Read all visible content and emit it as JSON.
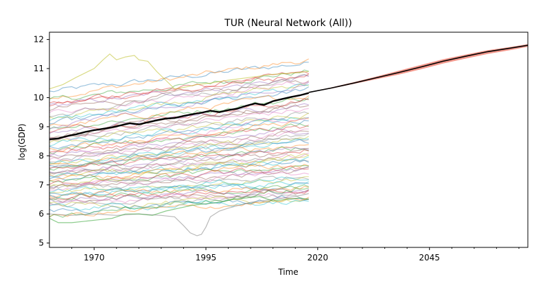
{
  "chart_data": {
    "type": "line",
    "title": "TUR (Neural Network (All))",
    "xlabel": "Time",
    "ylabel": "log(GDP)",
    "xlim": [
      1960,
      2067
    ],
    "ylim": [
      4.85,
      12.25
    ],
    "xticks": [
      1970,
      1995,
      2020,
      2045
    ],
    "yticks": [
      5,
      6,
      7,
      8,
      9,
      10,
      11,
      12
    ],
    "grid": false,
    "legend": "none",
    "background_series": {
      "description_count": 70,
      "x_range": [
        1960,
        2018
      ],
      "alpha": 0.45,
      "palette": [
        "#1f77b4",
        "#ff7f0e",
        "#2ca02c",
        "#d62728",
        "#9467bd",
        "#8c564b",
        "#e377c2",
        "#7f7f7f",
        "#bcbd22",
        "#17becf"
      ],
      "start_values": [
        10.2,
        10.05,
        9.9,
        9.75,
        9.7,
        9.6,
        9.5,
        9.35,
        9.3,
        9.2,
        9.1,
        9.0,
        8.95,
        8.85,
        8.8,
        8.7,
        8.6,
        8.55,
        8.45,
        8.4,
        8.3,
        8.25,
        8.15,
        8.1,
        8.0,
        7.95,
        7.9,
        7.85,
        7.8,
        7.75,
        7.7,
        7.65,
        7.6,
        7.55,
        7.5,
        7.45,
        7.4,
        7.35,
        7.3,
        7.25,
        7.2,
        7.15,
        7.1,
        7.05,
        7.0,
        6.95,
        6.9,
        6.85,
        6.8,
        6.75,
        6.7,
        6.65,
        6.6,
        6.55,
        6.5,
        6.45,
        6.4,
        6.35,
        6.3,
        6.2,
        6.1,
        5.9,
        5.85,
        9.8,
        9.0,
        8.6,
        8.0,
        7.5,
        7.0,
        6.6
      ],
      "end_values": [
        11.2,
        11.3,
        10.9,
        10.85,
        10.7,
        10.6,
        10.55,
        10.7,
        10.5,
        10.4,
        10.3,
        10.1,
        10.0,
        9.9,
        9.8,
        9.7,
        9.6,
        9.5,
        9.4,
        9.35,
        9.3,
        9.2,
        9.1,
        9.0,
        8.9,
        8.85,
        8.8,
        8.7,
        8.6,
        8.55,
        8.5,
        8.4,
        8.3,
        8.25,
        8.2,
        8.1,
        8.0,
        7.95,
        7.9,
        7.85,
        7.8,
        7.7,
        7.6,
        7.55,
        7.5,
        7.45,
        7.4,
        7.3,
        7.2,
        7.1,
        7.0,
        6.95,
        6.9,
        6.85,
        6.8,
        6.75,
        6.7,
        6.6,
        6.5,
        6.4,
        6.55,
        6.5,
        6.9,
        10.8,
        10.5,
        9.9,
        9.4,
        8.6,
        8.0,
        7.3
      ]
    },
    "special_series": [
      {
        "color": "#bcbd22",
        "x": [
          1960,
          1963,
          1966,
          1968,
          1970,
          1972,
          1973.5,
          1975,
          1977,
          1979,
          1980,
          1982,
          1984,
          1986,
          1988,
          1990,
          1993,
          1996,
          2000,
          2005,
          2010,
          2015,
          2018
        ],
        "y": [
          10.3,
          10.45,
          10.7,
          10.85,
          11.0,
          11.3,
          11.5,
          11.3,
          11.4,
          11.45,
          11.3,
          11.25,
          10.9,
          10.6,
          10.3,
          10.35,
          10.45,
          10.5,
          10.6,
          10.7,
          10.8,
          10.85,
          10.9
        ]
      },
      {
        "color": "#7f7f7f",
        "x": [
          1960,
          1965,
          1970,
          1975,
          1980,
          1985,
          1988,
          1990,
          1991.5,
          1993,
          1994,
          1995,
          1996,
          1998,
          2000,
          2005,
          2010,
          2015,
          2018
        ],
        "y": [
          6.0,
          5.95,
          6.0,
          5.95,
          6.0,
          5.95,
          5.9,
          5.6,
          5.35,
          5.25,
          5.3,
          5.55,
          5.9,
          6.1,
          6.2,
          6.4,
          6.5,
          6.6,
          6.7
        ]
      },
      {
        "color": "#2ca02c",
        "x": [
          1960,
          1962,
          1965,
          1968,
          1971,
          1974,
          1977,
          1980,
          1983,
          1986,
          1989,
          1992,
          1995,
          1998,
          2001,
          2004,
          2007,
          2010,
          2013,
          2016,
          2018
        ],
        "y": [
          5.85,
          5.7,
          5.7,
          5.75,
          5.8,
          5.85,
          6.0,
          6.0,
          5.95,
          6.1,
          6.2,
          6.3,
          6.35,
          6.4,
          6.5,
          6.55,
          6.6,
          6.45,
          6.5,
          6.55,
          6.5
        ]
      }
    ],
    "historical_mean": {
      "color": "#000000",
      "x": [
        1960,
        1962,
        1964,
        1966,
        1968,
        1970,
        1972,
        1974,
        1976,
        1978,
        1980,
        1982,
        1984,
        1986,
        1988,
        1990,
        1992,
        1994,
        1996,
        1998,
        2000,
        2002,
        2004,
        2006,
        2008,
        2010,
        2012,
        2014,
        2016,
        2018
      ],
      "y": [
        8.57,
        8.6,
        8.68,
        8.74,
        8.82,
        8.88,
        8.93,
        8.98,
        9.05,
        9.12,
        9.08,
        9.15,
        9.22,
        9.28,
        9.3,
        9.37,
        9.43,
        9.48,
        9.55,
        9.5,
        9.57,
        9.62,
        9.72,
        9.8,
        9.75,
        9.88,
        9.95,
        10.02,
        10.08,
        10.16
      ]
    },
    "forecast": {
      "line_color": "#000000",
      "band_color": "#e8442e",
      "x": [
        2018,
        2023,
        2028,
        2033,
        2038,
        2043,
        2048,
        2053,
        2058,
        2063,
        2067
      ],
      "y": [
        10.18,
        10.33,
        10.5,
        10.68,
        10.86,
        11.05,
        11.25,
        11.42,
        11.58,
        11.7,
        11.8
      ],
      "y_lower": [
        10.17,
        10.31,
        10.47,
        10.63,
        10.79,
        10.97,
        11.17,
        11.34,
        11.5,
        11.63,
        11.75
      ],
      "y_upper": [
        10.19,
        10.35,
        10.53,
        10.72,
        10.92,
        11.12,
        11.32,
        11.48,
        11.63,
        11.74,
        11.84
      ]
    }
  }
}
